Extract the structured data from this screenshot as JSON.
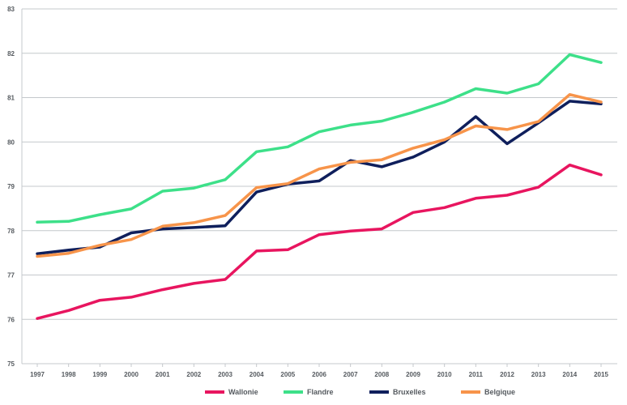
{
  "chart_data": {
    "type": "line",
    "title": "",
    "xlabel": "",
    "ylabel": "",
    "x": [
      "1997",
      "1998",
      "1999",
      "2000",
      "2001",
      "2002",
      "2003",
      "2004",
      "2005",
      "2006",
      "2007",
      "2008",
      "2009",
      "2010",
      "2011",
      "2012",
      "2013",
      "2014",
      "2015"
    ],
    "ylim": [
      75,
      83
    ],
    "yticks": [
      75,
      76,
      77,
      78,
      79,
      80,
      81,
      82,
      83
    ],
    "grid": true,
    "legend_position": "bottom",
    "series": [
      {
        "name": "Wallonie",
        "color": "#e8155f",
        "values": [
          76.02,
          76.2,
          76.43,
          76.5,
          76.67,
          76.81,
          76.9,
          77.54,
          77.57,
          77.91,
          77.99,
          78.04,
          78.41,
          78.52,
          78.73,
          78.8,
          78.98,
          79.48,
          79.26
        ]
      },
      {
        "name": "Flandre",
        "color": "#3de089",
        "values": [
          78.19,
          78.21,
          78.36,
          78.49,
          78.89,
          78.96,
          79.15,
          79.78,
          79.89,
          80.23,
          80.38,
          80.47,
          80.67,
          80.9,
          81.2,
          81.1,
          81.31,
          81.97,
          81.79
        ]
      },
      {
        "name": "Bruxelles",
        "color": "#0f1f5c",
        "values": [
          77.48,
          77.56,
          77.63,
          77.95,
          78.04,
          78.07,
          78.11,
          78.87,
          79.05,
          79.12,
          79.58,
          79.44,
          79.66,
          80.0,
          80.57,
          79.96,
          80.43,
          80.92,
          80.86
        ]
      },
      {
        "name": "Belgique",
        "color": "#f7944a",
        "values": [
          77.42,
          77.49,
          77.67,
          77.8,
          78.1,
          78.18,
          78.34,
          78.97,
          79.06,
          79.39,
          79.54,
          79.6,
          79.86,
          80.05,
          80.36,
          80.28,
          80.46,
          81.07,
          80.9
        ]
      }
    ]
  }
}
